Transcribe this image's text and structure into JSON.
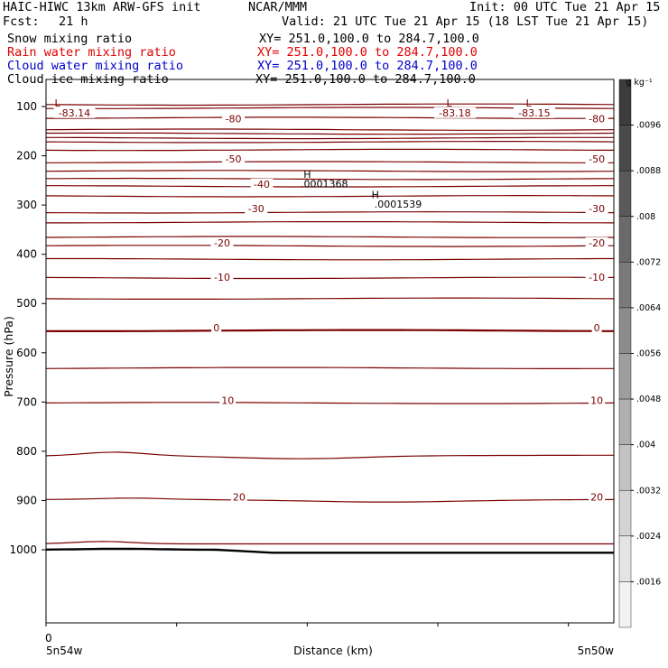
{
  "header": {
    "title_left": "HAIC-HIWC 13km ARW-GFS init",
    "title_mid": "NCAR/MMM",
    "init": "Init: 00 UTC Tue 21 Apr 15",
    "fcst_label": "Fcst:",
    "fcst_value": "21 h",
    "valid": "Valid: 21 UTC Tue 21 Apr 15 (18 LST Tue 21 Apr 15)"
  },
  "fields": [
    {
      "name": "Snow mixing ratio",
      "xy": "XY= 251.0,100.0 to 284.7,100.0",
      "color": "#000000"
    },
    {
      "name": "Rain water mixing ratio",
      "xy": "XY= 251.0,100.0 to 284.7,100.0",
      "color": "#e00000"
    },
    {
      "name": "Cloud water mixing ratio",
      "xy": "XY= 251.0,100.0 to 284.7,100.0",
      "color": "#0000c8"
    },
    {
      "name": "Cloud ice mixing ratio",
      "xy": "XY= 251.0,100.0 to 284.7,100.0",
      "color": "#000000"
    }
  ],
  "chart_data": {
    "type": "contour",
    "ylabel": "Pressure (hPa)",
    "xlabel": "Distance (km)",
    "x_start_label": "5n54w",
    "x_end_label": "5n50w",
    "x_zero_label": "0",
    "y_ticks": [
      100,
      200,
      300,
      400,
      500,
      600,
      700,
      800,
      900,
      1000
    ],
    "ylim": [
      1050,
      50
    ],
    "contour_labels": [
      {
        "text": "-83.14",
        "p": 118,
        "x": 0.05
      },
      {
        "text": "-83.18",
        "p": 118,
        "x": 0.72
      },
      {
        "text": "-83.15",
        "p": 118,
        "x": 0.86
      },
      {
        "text": "L",
        "p": 98,
        "x": 0.02
      },
      {
        "text": "L",
        "p": 98,
        "x": 0.71
      },
      {
        "text": "L",
        "p": 98,
        "x": 0.85
      },
      {
        "text": "-80",
        "p": 130,
        "x": 0.33
      },
      {
        "text": "-80",
        "p": 130,
        "x": 0.97
      },
      {
        "text": "-50",
        "p": 212,
        "x": 0.33
      },
      {
        "text": "-50",
        "p": 212,
        "x": 0.97
      },
      {
        "text": "-40",
        "p": 263,
        "x": 0.38
      },
      {
        "text": "-30",
        "p": 313,
        "x": 0.37
      },
      {
        "text": "-30",
        "p": 313,
        "x": 0.97
      },
      {
        "text": "-20",
        "p": 382,
        "x": 0.31
      },
      {
        "text": "-20",
        "p": 382,
        "x": 0.97
      },
      {
        "text": "-10",
        "p": 452,
        "x": 0.31
      },
      {
        "text": "-10",
        "p": 452,
        "x": 0.97
      },
      {
        "text": "0",
        "p": 555,
        "x": 0.3
      },
      {
        "text": "0",
        "p": 555,
        "x": 0.97
      },
      {
        "text": "10",
        "p": 702,
        "x": 0.32
      },
      {
        "text": "10",
        "p": 702,
        "x": 0.97
      },
      {
        "text": "20",
        "p": 898,
        "x": 0.34
      },
      {
        "text": "20",
        "p": 898,
        "x": 0.97
      },
      {
        "text": "H",
        "p": 243,
        "x": 0.46
      },
      {
        "text": ".0001368",
        "p": 262,
        "x": 0.49
      },
      {
        "text": "H",
        "p": 284,
        "x": 0.58
      },
      {
        "text": ".0001539",
        "p": 303,
        "x": 0.62
      }
    ],
    "colorbar": {
      "unit": "g kg⁻¹",
      "labels": [
        ".0096",
        ".0088",
        ".008",
        ".0072",
        ".0064",
        ".0056",
        ".0048",
        ".004",
        ".0032",
        ".0024",
        ".0016"
      ],
      "colors": [
        "#3c3c3c",
        "#4a4a4a",
        "#5a5a5a",
        "#6a6a6a",
        "#7a7a7a",
        "#8c8c8c",
        "#9e9e9e",
        "#b0b0b0",
        "#c2c2c2",
        "#d4d4d4",
        "#e4e4e4",
        "#f2f2f2"
      ]
    },
    "colors": {
      "contour": "#7a0000",
      "terrain": "#000000",
      "axes": "#000000"
    }
  }
}
